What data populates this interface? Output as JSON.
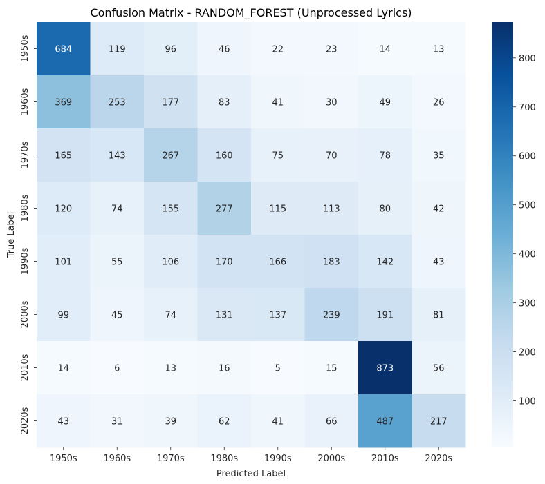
{
  "chart_data": {
    "type": "heatmap",
    "title": "Confusion Matrix - RANDOM_FOREST (Unprocessed Lyrics)",
    "xlabel": "Predicted Label",
    "ylabel": "True Label",
    "x_categories": [
      "1950s",
      "1960s",
      "1970s",
      "1980s",
      "1990s",
      "2000s",
      "2010s",
      "2020s"
    ],
    "y_categories": [
      "1950s",
      "1960s",
      "1970s",
      "1980s",
      "1990s",
      "2000s",
      "2010s",
      "2020s"
    ],
    "values": [
      [
        684,
        119,
        96,
        46,
        22,
        23,
        14,
        13
      ],
      [
        369,
        253,
        177,
        83,
        41,
        30,
        49,
        26
      ],
      [
        165,
        143,
        267,
        160,
        75,
        70,
        78,
        35
      ],
      [
        120,
        74,
        155,
        277,
        115,
        113,
        80,
        42
      ],
      [
        101,
        55,
        106,
        170,
        166,
        183,
        142,
        43
      ],
      [
        99,
        45,
        74,
        131,
        137,
        239,
        191,
        81
      ],
      [
        14,
        6,
        13,
        16,
        5,
        15,
        873,
        56
      ],
      [
        43,
        31,
        39,
        62,
        41,
        66,
        487,
        217
      ]
    ],
    "colormap": "Blues",
    "colorbar": {
      "ticks": [
        100,
        200,
        300,
        400,
        500,
        600,
        700,
        800
      ],
      "range": [
        5,
        873
      ]
    }
  }
}
